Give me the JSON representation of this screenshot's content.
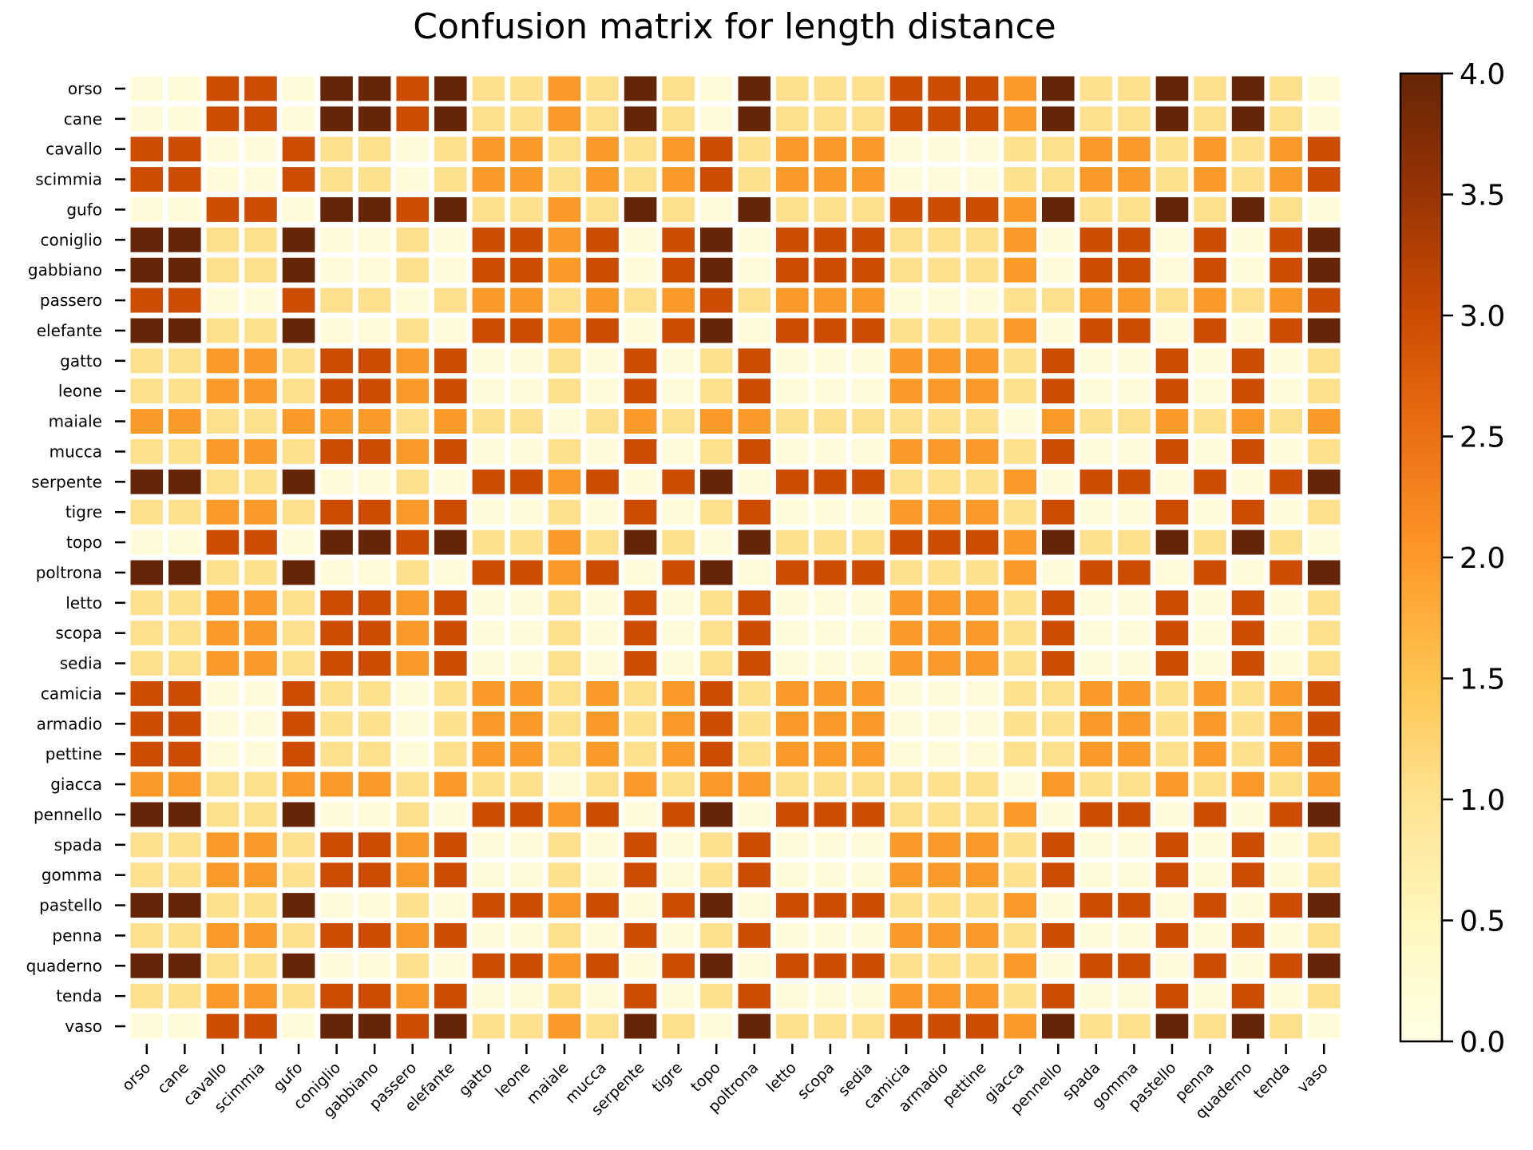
{
  "chart_data": {
    "type": "heatmap",
    "title": "Confusion matrix for length distance",
    "labels": [
      "orso",
      "cane",
      "cavallo",
      "scimmia",
      "gufo",
      "coniglio",
      "gabbiano",
      "passero",
      "elefante",
      "gatto",
      "leone",
      "maiale",
      "mucca",
      "serpente",
      "tigre",
      "topo",
      "poltrona",
      "letto",
      "scopa",
      "sedia",
      "camicia",
      "armadio",
      "pettine",
      "giacca",
      "pennello",
      "spada",
      "gomma",
      "pastello",
      "penna",
      "quaderno",
      "tenda",
      "vaso"
    ],
    "word_lengths": [
      4,
      4,
      7,
      7,
      4,
      8,
      8,
      7,
      8,
      5,
      5,
      6,
      5,
      8,
      5,
      4,
      8,
      5,
      5,
      5,
      7,
      7,
      7,
      6,
      8,
      5,
      5,
      8,
      5,
      8,
      5,
      4
    ],
    "value_rule": "absolute difference of word lengths",
    "vmin": 0,
    "vmax": 4,
    "colormap": "YlOrBr",
    "colorbar_ticks": [
      "0.0",
      "0.5",
      "1.0",
      "1.5",
      "2.0",
      "2.5",
      "3.0",
      "3.5",
      "4.0"
    ],
    "grid": false,
    "cell_border_color": "#ffffff"
  }
}
